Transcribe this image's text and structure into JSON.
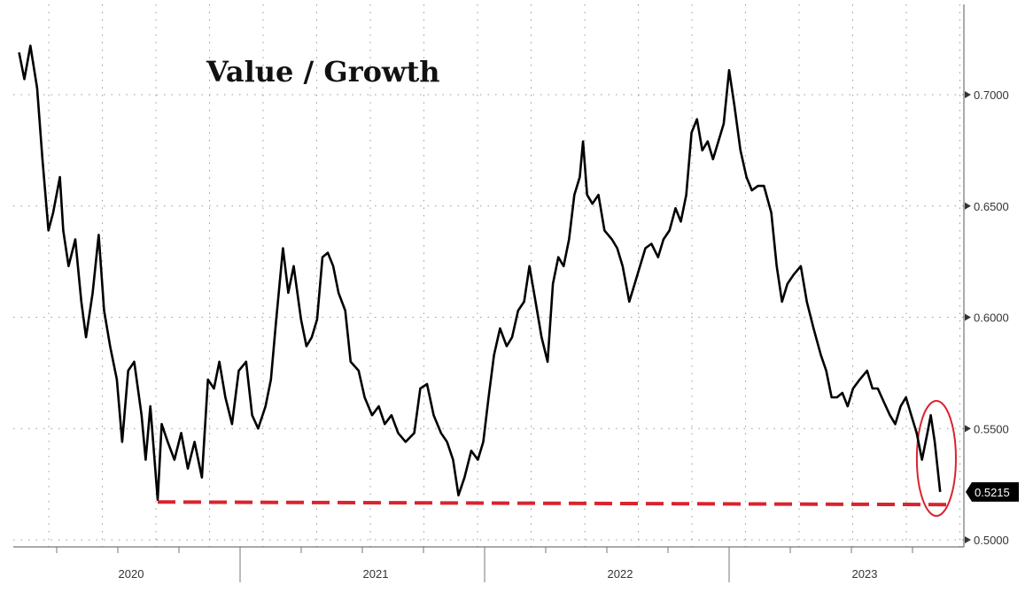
{
  "chart_data": {
    "type": "line",
    "title": "Value / Growth",
    "xlabel": "",
    "ylabel": "",
    "x_tick_labels": [
      "2020",
      "2021",
      "2022",
      "2023"
    ],
    "y_tick_labels": [
      "0.5000",
      "0.5500",
      "0.6000",
      "0.6500",
      "0.7000"
    ],
    "ylim": [
      0.497,
      0.724
    ],
    "xlim": [
      "2020-01-01",
      "2023-12-31"
    ],
    "y_axis_side": "right",
    "grid": true,
    "last_value_label": "0.5215",
    "line_color": "#000000",
    "annotation": {
      "support_line": {
        "from": "2020-08-30",
        "to": "2023-11-20",
        "value": 0.517,
        "style": "dashed",
        "color": "#d9232e"
      },
      "highlight_ellipse": {
        "from": "2023-09-28",
        "to": "2023-11-20",
        "color": "#d9232e"
      }
    },
    "series": [
      {
        "x": [
          "2020-02-05",
          "2020-02-13",
          "2020-02-22",
          "2020-03-03",
          "2020-03-11",
          "2020-03-20",
          "2020-03-27",
          "2020-04-06",
          "2020-04-11",
          "2020-04-19",
          "2020-04-29",
          "2020-05-08",
          "2020-05-15",
          "2020-05-25",
          "2020-06-03",
          "2020-06-11",
          "2020-06-20",
          "2020-06-30",
          "2020-07-08",
          "2020-07-17",
          "2020-07-26",
          "2020-08-06",
          "2020-08-12",
          "2020-08-19",
          "2020-08-30",
          "2020-09-05",
          "2020-09-14",
          "2020-09-24",
          "2020-10-04",
          "2020-10-14",
          "2020-10-24",
          "2020-11-04",
          "2020-11-13",
          "2020-11-22",
          "2020-11-30",
          "2020-12-09",
          "2020-12-19",
          "2020-12-29",
          "2021-01-09",
          "2021-01-18",
          "2021-01-27",
          "2021-02-07",
          "2021-02-15",
          "2021-02-23",
          "2021-03-05",
          "2021-03-13",
          "2021-03-21",
          "2021-04-01",
          "2021-04-09",
          "2021-04-17",
          "2021-04-25",
          "2021-05-03",
          "2021-05-11",
          "2021-05-19",
          "2021-05-27",
          "2021-06-06",
          "2021-06-14",
          "2021-06-26",
          "2021-07-05",
          "2021-07-16",
          "2021-07-26",
          "2021-08-04",
          "2021-08-14",
          "2021-08-24",
          "2021-09-04",
          "2021-09-17",
          "2021-09-26",
          "2021-10-06",
          "2021-10-16",
          "2021-10-27",
          "2021-11-05",
          "2021-11-14",
          "2021-11-22",
          "2021-12-01",
          "2021-12-11",
          "2021-12-21",
          "2021-12-29",
          "2022-01-06",
          "2022-01-14",
          "2022-01-23",
          "2022-02-02",
          "2022-02-10",
          "2022-02-19",
          "2022-02-28",
          "2022-03-08",
          "2022-03-17",
          "2022-03-26",
          "2022-04-04",
          "2022-04-12",
          "2022-04-20",
          "2022-04-28",
          "2022-05-06",
          "2022-05-14",
          "2022-05-22",
          "2022-05-27",
          "2022-06-02",
          "2022-06-10",
          "2022-06-19",
          "2022-06-28",
          "2022-07-09",
          "2022-07-17",
          "2022-07-25",
          "2022-08-04",
          "2022-08-12",
          "2022-08-20",
          "2022-08-28",
          "2022-09-06",
          "2022-09-16",
          "2022-09-24",
          "2022-10-03",
          "2022-10-12",
          "2022-10-20",
          "2022-10-28",
          "2022-11-05",
          "2022-11-13",
          "2022-11-21",
          "2022-11-29",
          "2022-12-07",
          "2022-12-15",
          "2022-12-23",
          "2022-12-31",
          "2023-01-08",
          "2023-01-17",
          "2023-01-26",
          "2023-02-03",
          "2023-02-12",
          "2023-02-21",
          "2023-03-04",
          "2023-03-12",
          "2023-03-20",
          "2023-03-28",
          "2023-04-06",
          "2023-04-17",
          "2023-04-26",
          "2023-05-06",
          "2023-05-17",
          "2023-05-25",
          "2023-06-02",
          "2023-06-10",
          "2023-06-18",
          "2023-06-26",
          "2023-07-04",
          "2023-07-14",
          "2023-07-25",
          "2023-08-02",
          "2023-08-10",
          "2023-08-19",
          "2023-08-28",
          "2023-09-05",
          "2023-09-13",
          "2023-09-21",
          "2023-09-29",
          "2023-10-07",
          "2023-10-15",
          "2023-10-23",
          "2023-10-28",
          "2023-11-03",
          "2023-11-11"
        ],
        "values": [
          0.719,
          0.707,
          0.722,
          0.703,
          0.671,
          0.639,
          0.647,
          0.663,
          0.639,
          0.623,
          0.635,
          0.607,
          0.591,
          0.611,
          0.637,
          0.603,
          0.587,
          0.572,
          0.544,
          0.576,
          0.58,
          0.556,
          0.536,
          0.56,
          0.518,
          0.552,
          0.544,
          0.536,
          0.548,
          0.532,
          0.544,
          0.528,
          0.572,
          0.568,
          0.58,
          0.564,
          0.552,
          0.576,
          0.58,
          0.556,
          0.55,
          0.56,
          0.572,
          0.599,
          0.631,
          0.611,
          0.623,
          0.599,
          0.587,
          0.591,
          0.599,
          0.627,
          0.629,
          0.623,
          0.611,
          0.603,
          0.58,
          0.576,
          0.564,
          0.556,
          0.56,
          0.552,
          0.556,
          0.548,
          0.544,
          0.548,
          0.568,
          0.57,
          0.556,
          0.548,
          0.544,
          0.536,
          0.52,
          0.528,
          0.54,
          0.536,
          0.544,
          0.564,
          0.583,
          0.595,
          0.587,
          0.591,
          0.603,
          0.607,
          0.623,
          0.607,
          0.591,
          0.58,
          0.615,
          0.627,
          0.623,
          0.635,
          0.655,
          0.663,
          0.679,
          0.655,
          0.651,
          0.655,
          0.639,
          0.635,
          0.631,
          0.623,
          0.607,
          0.615,
          0.623,
          0.631,
          0.633,
          0.627,
          0.635,
          0.639,
          0.649,
          0.643,
          0.655,
          0.683,
          0.689,
          0.675,
          0.679,
          0.671,
          0.679,
          0.687,
          0.711,
          0.695,
          0.675,
          0.663,
          0.657,
          0.659,
          0.659,
          0.647,
          0.623,
          0.607,
          0.615,
          0.619,
          0.623,
          0.607,
          0.595,
          0.583,
          0.576,
          0.564,
          0.564,
          0.566,
          0.56,
          0.568,
          0.572,
          0.576,
          0.568,
          0.568,
          0.562,
          0.556,
          0.552,
          0.56,
          0.564,
          0.556,
          0.548,
          0.536,
          0.548,
          0.556,
          0.544,
          0.5215
        ]
      }
    ]
  }
}
